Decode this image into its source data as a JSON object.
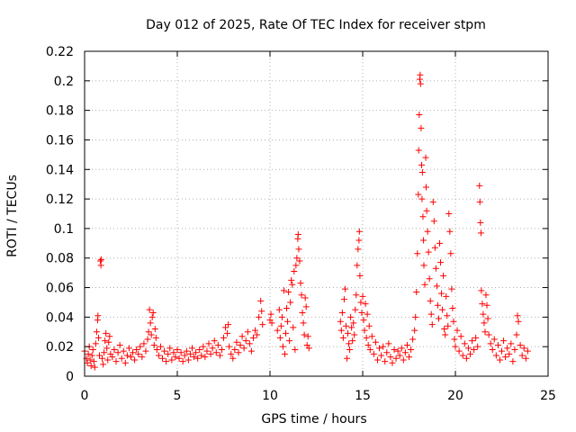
{
  "chart_data": {
    "type": "scatter",
    "title": "Day 012 of 2025, Rate Of TEC Index for receiver stpm",
    "xlabel": "GPS time / hours",
    "ylabel": "ROTI / TECUs",
    "xlim": [
      0,
      25
    ],
    "ylim": [
      0,
      0.22
    ],
    "xticks": [
      0,
      5,
      10,
      15,
      20,
      25
    ],
    "xtick_labels": [
      "0",
      "5",
      "10",
      "15",
      "20",
      "25"
    ],
    "yticks": [
      0,
      0.02,
      0.04,
      0.06,
      0.08,
      0.1,
      0.12,
      0.14,
      0.16,
      0.18,
      0.2,
      0.22
    ],
    "ytick_labels": [
      "0",
      "0.02",
      "0.04",
      "0.06",
      "0.08",
      "0.1",
      "0.12",
      "0.14",
      "0.16",
      "0.18",
      "0.2",
      "0.22"
    ],
    "grid": true,
    "marker": "+",
    "color": "#ff0000",
    "series": [
      {
        "points": [
          [
            0.0,
            0.017
          ],
          [
            0.1,
            0.012
          ],
          [
            0.15,
            0.009
          ],
          [
            0.2,
            0.015
          ],
          [
            0.25,
            0.02
          ],
          [
            0.3,
            0.011
          ],
          [
            0.35,
            0.007
          ],
          [
            0.4,
            0.014
          ],
          [
            0.45,
            0.018
          ],
          [
            0.5,
            0.01
          ],
          [
            0.55,
            0.006
          ],
          [
            0.6,
            0.022
          ],
          [
            0.65,
            0.03
          ],
          [
            0.7,
            0.038
          ],
          [
            0.72,
            0.041
          ],
          [
            0.75,
            0.026
          ],
          [
            0.8,
            0.014
          ],
          [
            0.85,
            0.078
          ],
          [
            0.88,
            0.075
          ],
          [
            0.9,
            0.079
          ],
          [
            0.95,
            0.012
          ],
          [
            1.0,
            0.008
          ],
          [
            1.05,
            0.016
          ],
          [
            1.1,
            0.024
          ],
          [
            1.15,
            0.029
          ],
          [
            1.2,
            0.019
          ],
          [
            1.25,
            0.011
          ],
          [
            1.3,
            0.023
          ],
          [
            1.35,
            0.027
          ],
          [
            1.4,
            0.015
          ],
          [
            1.5,
            0.013
          ],
          [
            1.6,
            0.018
          ],
          [
            1.7,
            0.01
          ],
          [
            1.8,
            0.016
          ],
          [
            1.9,
            0.021
          ],
          [
            2.0,
            0.012
          ],
          [
            2.1,
            0.017
          ],
          [
            2.2,
            0.009
          ],
          [
            2.3,
            0.014
          ],
          [
            2.4,
            0.019
          ],
          [
            2.5,
            0.013
          ],
          [
            2.6,
            0.016
          ],
          [
            2.7,
            0.011
          ],
          [
            2.8,
            0.018
          ],
          [
            2.9,
            0.015
          ],
          [
            3.0,
            0.02
          ],
          [
            3.1,
            0.013
          ],
          [
            3.2,
            0.022
          ],
          [
            3.3,
            0.017
          ],
          [
            3.4,
            0.025
          ],
          [
            3.45,
            0.03
          ],
          [
            3.5,
            0.045
          ],
          [
            3.55,
            0.036
          ],
          [
            3.6,
            0.028
          ],
          [
            3.65,
            0.04
          ],
          [
            3.7,
            0.043
          ],
          [
            3.75,
            0.021
          ],
          [
            3.8,
            0.032
          ],
          [
            3.85,
            0.026
          ],
          [
            3.9,
            0.018
          ],
          [
            4.0,
            0.014
          ],
          [
            4.1,
            0.02
          ],
          [
            4.2,
            0.012
          ],
          [
            4.3,
            0.017
          ],
          [
            4.4,
            0.01
          ],
          [
            4.5,
            0.015
          ],
          [
            4.6,
            0.019
          ],
          [
            4.7,
            0.011
          ],
          [
            4.8,
            0.016
          ],
          [
            4.9,
            0.013
          ],
          [
            5.0,
            0.018
          ],
          [
            5.1,
            0.012
          ],
          [
            5.2,
            0.016
          ],
          [
            5.3,
            0.01
          ],
          [
            5.4,
            0.014
          ],
          [
            5.5,
            0.017
          ],
          [
            5.6,
            0.011
          ],
          [
            5.7,
            0.015
          ],
          [
            5.8,
            0.019
          ],
          [
            5.9,
            0.013
          ],
          [
            6.0,
            0.016
          ],
          [
            6.1,
            0.012
          ],
          [
            6.2,
            0.018
          ],
          [
            6.3,
            0.014
          ],
          [
            6.4,
            0.02
          ],
          [
            6.5,
            0.013
          ],
          [
            6.6,
            0.017
          ],
          [
            6.7,
            0.022
          ],
          [
            6.8,
            0.015
          ],
          [
            6.9,
            0.019
          ],
          [
            7.0,
            0.024
          ],
          [
            7.1,
            0.016
          ],
          [
            7.2,
            0.021
          ],
          [
            7.3,
            0.014
          ],
          [
            7.4,
            0.018
          ],
          [
            7.5,
            0.026
          ],
          [
            7.6,
            0.033
          ],
          [
            7.7,
            0.029
          ],
          [
            7.75,
            0.035
          ],
          [
            7.8,
            0.02
          ],
          [
            7.9,
            0.015
          ],
          [
            8.0,
            0.012
          ],
          [
            8.1,
            0.018
          ],
          [
            8.2,
            0.023
          ],
          [
            8.3,
            0.016
          ],
          [
            8.4,
            0.021
          ],
          [
            8.5,
            0.027
          ],
          [
            8.6,
            0.019
          ],
          [
            8.7,
            0.024
          ],
          [
            8.8,
            0.03
          ],
          [
            8.9,
            0.022
          ],
          [
            9.0,
            0.017
          ],
          [
            9.1,
            0.026
          ],
          [
            9.2,
            0.031
          ],
          [
            9.3,
            0.028
          ],
          [
            9.4,
            0.04
          ],
          [
            9.5,
            0.051
          ],
          [
            9.55,
            0.044
          ],
          [
            9.6,
            0.035
          ],
          [
            10.0,
            0.038
          ],
          [
            10.05,
            0.042
          ],
          [
            10.1,
            0.036
          ],
          [
            10.4,
            0.031
          ],
          [
            10.5,
            0.045
          ],
          [
            10.55,
            0.026
          ],
          [
            10.6,
            0.034
          ],
          [
            10.65,
            0.04
          ],
          [
            10.7,
            0.02
          ],
          [
            10.75,
            0.058
          ],
          [
            10.8,
            0.015
          ],
          [
            10.85,
            0.029
          ],
          [
            10.9,
            0.046
          ],
          [
            10.95,
            0.037
          ],
          [
            11.0,
            0.057
          ],
          [
            11.05,
            0.024
          ],
          [
            11.1,
            0.05
          ],
          [
            11.15,
            0.065
          ],
          [
            11.2,
            0.062
          ],
          [
            11.25,
            0.033
          ],
          [
            11.3,
            0.071
          ],
          [
            11.35,
            0.018
          ],
          [
            11.4,
            0.075
          ],
          [
            11.45,
            0.08
          ],
          [
            11.5,
            0.093
          ],
          [
            11.52,
            0.096
          ],
          [
            11.55,
            0.086
          ],
          [
            11.6,
            0.078
          ],
          [
            11.65,
            0.063
          ],
          [
            11.7,
            0.055
          ],
          [
            11.75,
            0.043
          ],
          [
            11.8,
            0.036
          ],
          [
            11.85,
            0.028
          ],
          [
            11.9,
            0.053
          ],
          [
            11.95,
            0.047
          ],
          [
            12.0,
            0.021
          ],
          [
            12.05,
            0.027
          ],
          [
            12.1,
            0.019
          ],
          [
            13.8,
            0.037
          ],
          [
            13.85,
            0.031
          ],
          [
            13.9,
            0.043
          ],
          [
            13.95,
            0.026
          ],
          [
            14.0,
            0.052
          ],
          [
            14.05,
            0.059
          ],
          [
            14.1,
            0.034
          ],
          [
            14.15,
            0.012
          ],
          [
            14.2,
            0.029
          ],
          [
            14.25,
            0.022
          ],
          [
            14.3,
            0.018
          ],
          [
            14.35,
            0.04
          ],
          [
            14.4,
            0.033
          ],
          [
            14.45,
            0.024
          ],
          [
            14.5,
            0.036
          ],
          [
            14.55,
            0.028
          ],
          [
            14.6,
            0.045
          ],
          [
            14.65,
            0.055
          ],
          [
            14.7,
            0.075
          ],
          [
            14.75,
            0.086
          ],
          [
            14.8,
            0.092
          ],
          [
            14.82,
            0.098
          ],
          [
            14.85,
            0.068
          ],
          [
            14.9,
            0.05
          ],
          [
            14.95,
            0.043
          ],
          [
            15.0,
            0.054
          ],
          [
            15.05,
            0.038
          ],
          [
            15.1,
            0.031
          ],
          [
            15.15,
            0.049
          ],
          [
            15.2,
            0.026
          ],
          [
            15.25,
            0.042
          ],
          [
            15.3,
            0.021
          ],
          [
            15.35,
            0.034
          ],
          [
            15.4,
            0.018
          ],
          [
            15.5,
            0.027
          ],
          [
            15.6,
            0.015
          ],
          [
            15.7,
            0.023
          ],
          [
            15.8,
            0.011
          ],
          [
            15.9,
            0.019
          ],
          [
            16.0,
            0.014
          ],
          [
            16.1,
            0.02
          ],
          [
            16.2,
            0.01
          ],
          [
            16.3,
            0.016
          ],
          [
            16.4,
            0.022
          ],
          [
            16.5,
            0.013
          ],
          [
            16.6,
            0.009
          ],
          [
            16.7,
            0.018
          ],
          [
            16.8,
            0.012
          ],
          [
            16.9,
            0.017
          ],
          [
            17.0,
            0.014
          ],
          [
            17.1,
            0.019
          ],
          [
            17.2,
            0.011
          ],
          [
            17.3,
            0.016
          ],
          [
            17.4,
            0.021
          ],
          [
            17.5,
            0.013
          ],
          [
            17.6,
            0.018
          ],
          [
            17.7,
            0.025
          ],
          [
            17.8,
            0.031
          ],
          [
            17.85,
            0.04
          ],
          [
            17.9,
            0.057
          ],
          [
            17.95,
            0.083
          ],
          [
            18.0,
            0.123
          ],
          [
            18.02,
            0.153
          ],
          [
            18.05,
            0.177
          ],
          [
            18.08,
            0.201
          ],
          [
            18.1,
            0.204
          ],
          [
            18.12,
            0.198
          ],
          [
            18.15,
            0.168
          ],
          [
            18.18,
            0.143
          ],
          [
            18.2,
            0.12
          ],
          [
            18.22,
            0.138
          ],
          [
            18.25,
            0.108
          ],
          [
            18.28,
            0.092
          ],
          [
            18.3,
            0.075
          ],
          [
            18.35,
            0.062
          ],
          [
            18.4,
            0.148
          ],
          [
            18.42,
            0.128
          ],
          [
            18.45,
            0.112
          ],
          [
            18.5,
            0.098
          ],
          [
            18.55,
            0.084
          ],
          [
            18.6,
            0.066
          ],
          [
            18.65,
            0.051
          ],
          [
            18.7,
            0.042
          ],
          [
            18.75,
            0.035
          ],
          [
            18.8,
            0.118
          ],
          [
            18.85,
            0.105
          ],
          [
            18.9,
            0.087
          ],
          [
            18.95,
            0.073
          ],
          [
            19.0,
            0.061
          ],
          [
            19.05,
            0.048
          ],
          [
            19.1,
            0.039
          ],
          [
            19.15,
            0.09
          ],
          [
            19.2,
            0.077
          ],
          [
            19.25,
            0.056
          ],
          [
            19.3,
            0.045
          ],
          [
            19.35,
            0.068
          ],
          [
            19.4,
            0.032
          ],
          [
            19.45,
            0.028
          ],
          [
            19.5,
            0.054
          ],
          [
            19.55,
            0.041
          ],
          [
            19.6,
            0.034
          ],
          [
            19.65,
            0.11
          ],
          [
            19.7,
            0.098
          ],
          [
            19.75,
            0.083
          ],
          [
            19.8,
            0.059
          ],
          [
            19.85,
            0.046
          ],
          [
            19.9,
            0.037
          ],
          [
            19.95,
            0.025
          ],
          [
            20.0,
            0.02
          ],
          [
            20.1,
            0.031
          ],
          [
            20.2,
            0.017
          ],
          [
            20.3,
            0.027
          ],
          [
            20.4,
            0.014
          ],
          [
            20.5,
            0.022
          ],
          [
            20.6,
            0.012
          ],
          [
            20.7,
            0.019
          ],
          [
            20.8,
            0.015
          ],
          [
            20.9,
            0.024
          ],
          [
            21.0,
            0.018
          ],
          [
            21.1,
            0.026
          ],
          [
            21.2,
            0.02
          ],
          [
            21.3,
            0.129
          ],
          [
            21.32,
            0.118
          ],
          [
            21.35,
            0.104
          ],
          [
            21.38,
            0.097
          ],
          [
            21.4,
            0.058
          ],
          [
            21.45,
            0.049
          ],
          [
            21.5,
            0.042
          ],
          [
            21.55,
            0.036
          ],
          [
            21.6,
            0.03
          ],
          [
            21.65,
            0.055
          ],
          [
            21.7,
            0.048
          ],
          [
            21.75,
            0.039
          ],
          [
            21.8,
            0.028
          ],
          [
            21.9,
            0.022
          ],
          [
            22.0,
            0.018
          ],
          [
            22.1,
            0.025
          ],
          [
            22.2,
            0.014
          ],
          [
            22.3,
            0.021
          ],
          [
            22.4,
            0.011
          ],
          [
            22.5,
            0.017
          ],
          [
            22.6,
            0.024
          ],
          [
            22.7,
            0.013
          ],
          [
            22.8,
            0.019
          ],
          [
            22.9,
            0.015
          ],
          [
            23.0,
            0.022
          ],
          [
            23.1,
            0.01
          ],
          [
            23.2,
            0.018
          ],
          [
            23.3,
            0.028
          ],
          [
            23.35,
            0.041
          ],
          [
            23.4,
            0.037
          ],
          [
            23.5,
            0.021
          ],
          [
            23.6,
            0.014
          ],
          [
            23.7,
            0.019
          ],
          [
            23.8,
            0.012
          ],
          [
            23.9,
            0.017
          ]
        ]
      }
    ]
  }
}
